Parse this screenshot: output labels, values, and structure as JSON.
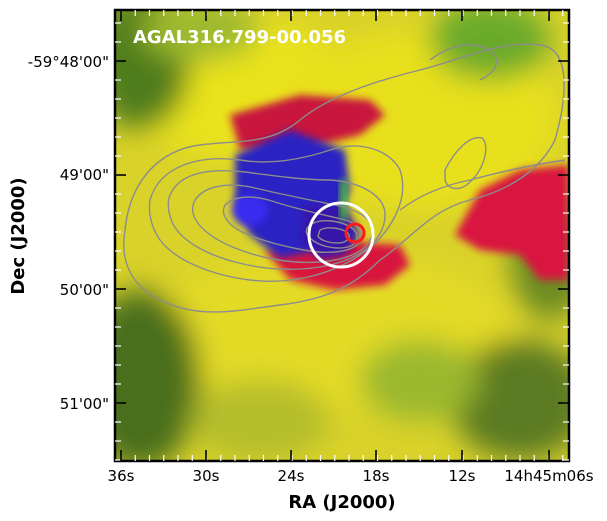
{
  "figure": {
    "title": "AGAL316.799-00.056",
    "xlabel": "RA (J2000)",
    "ylabel": "Dec (J2000)",
    "x_ticks": [
      "36s",
      "30s",
      "24s",
      "18s",
      "12s",
      "14h45m06s"
    ],
    "y_ticks": [
      "-59°48'00\"",
      "49'00\"",
      "50'00\"",
      "51'00\""
    ],
    "colors": {
      "background_yellow": "#e6df1c",
      "blue_region": "#2a1fc4",
      "red_region": "#d8123a",
      "green_region": "#58b03a",
      "contour": "#8c8c8c",
      "white_circle": "#ffffff",
      "red_circle": "#ff1a1a"
    }
  }
}
